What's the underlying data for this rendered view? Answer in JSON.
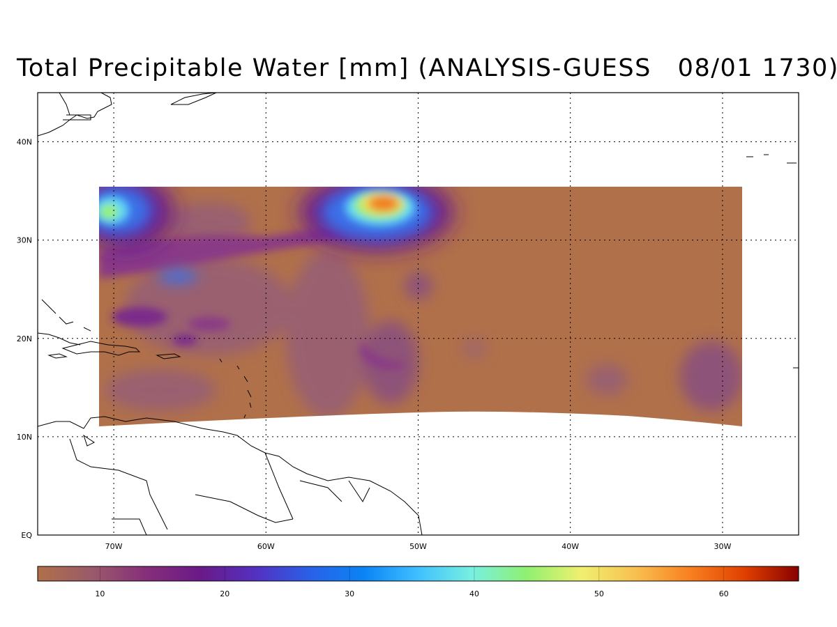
{
  "title": "Total Precipitable Water [mm] (ANALYSIS-GUESS   08/01 1730)",
  "map": {
    "lat_labels": [
      "40N",
      "30N",
      "20N",
      "10N",
      "EQ"
    ],
    "lon_labels": [
      "70W",
      "60W",
      "50W",
      "40W",
      "30W"
    ],
    "lat_values": [
      40,
      30,
      20,
      10,
      0
    ],
    "lon_values": [
      -70,
      -60,
      -50,
      -40,
      -30
    ],
    "extent": {
      "lon_min": -75,
      "lon_max": -25,
      "lat_min": 0,
      "lat_max": 45
    },
    "data_region": {
      "lon_min": -71,
      "lon_max": -29,
      "lat_max": 35.5,
      "lat_south_edge_min": 11,
      "lat_south_edge_center": 12.5
    }
  },
  "colorbar": {
    "tick_labels": [
      "10",
      "20",
      "30",
      "40",
      "50",
      "60"
    ],
    "tick_values": [
      10,
      20,
      30,
      40,
      50,
      60
    ],
    "range": [
      5,
      66
    ],
    "colors": [
      "#b0704a",
      "#9a5a6a",
      "#862e7a",
      "#6a1a88",
      "#5430c0",
      "#2a60e8",
      "#0a84f5",
      "#40c0ff",
      "#78f0e0",
      "#90f070",
      "#f0f070",
      "#f8c050",
      "#f88020",
      "#e04000",
      "#880000"
    ]
  },
  "field_colors": {
    "background": "#b0704a",
    "light_purple": "#9a6070",
    "purple": "#8a3a86",
    "deep_purple": "#6a1a90",
    "blue": "#3a70e8",
    "cyan": "#60d8f8",
    "green": "#98f070",
    "yellow": "#f0e060",
    "orange": "#f08020"
  }
}
